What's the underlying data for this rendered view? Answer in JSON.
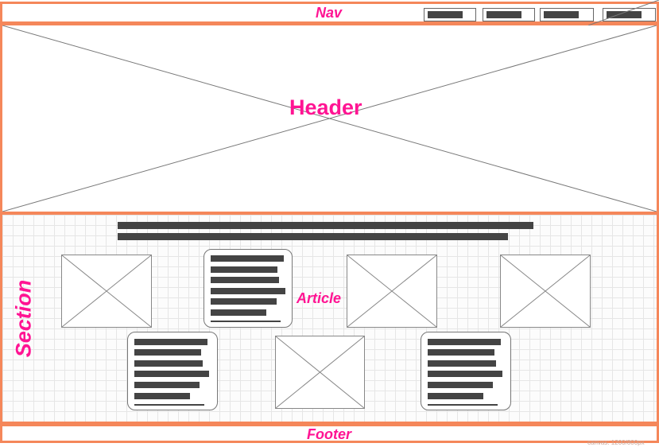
{
  "nav": {
    "label": "Nav",
    "buttons": [
      "nav-link-1",
      "nav-link-2",
      "nav-link-3",
      "nav-link-4"
    ]
  },
  "header": {
    "label": "Header"
  },
  "section": {
    "label": "Section"
  },
  "article": {
    "label": "Article"
  },
  "footer": {
    "label": "Footer"
  },
  "canvas_note": "canvas: 1200/800px",
  "colors": {
    "accent": "#ff1493",
    "zone_border": "#f5875a",
    "placeholder": "#444444"
  }
}
